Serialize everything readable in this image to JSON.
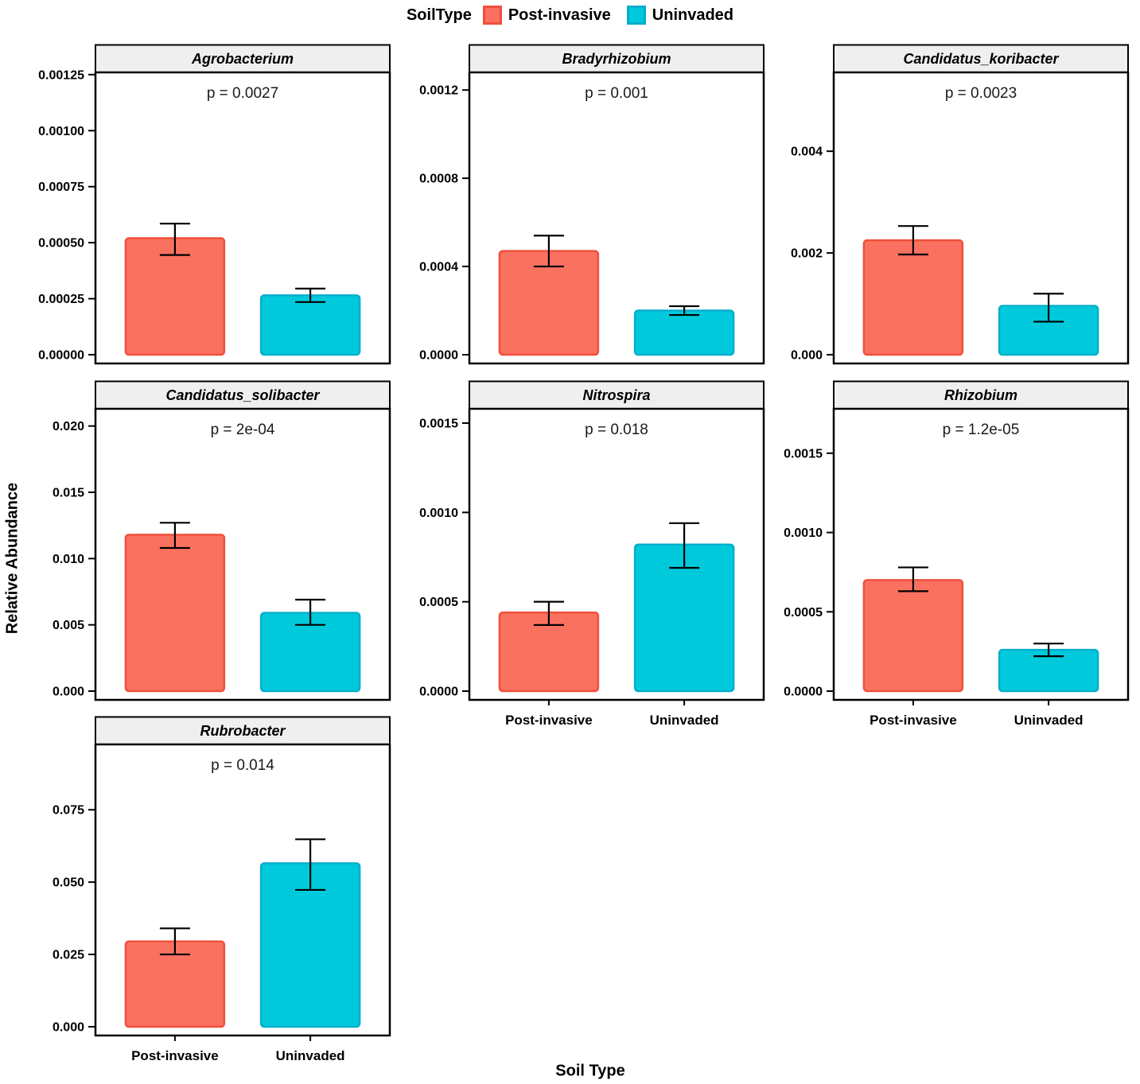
{
  "chart_data": {
    "type": "bar",
    "title": "",
    "xlabel": "Soil Type",
    "ylabel": "Relative Abundance",
    "categories": [
      "Post-invasive",
      "Uninvaded"
    ],
    "legend": {
      "title": "SoilType",
      "position": "top",
      "items": [
        {
          "label": "Post-invasive",
          "fill": "#FA7160",
          "stroke": "#F0503C"
        },
        {
          "label": "Uninvaded",
          "fill": "#00C9DC",
          "stroke": "#00AECC"
        }
      ]
    },
    "colors": {
      "post_invasive_fill": "#FA7160",
      "post_invasive_stroke": "#F0503C",
      "uninvaded_fill": "#00C9DC",
      "uninvaded_stroke": "#00AECC",
      "strip_bg": "#EFEFEF",
      "panel_border": "#000000",
      "p_text": "#1a1a1a"
    },
    "grid": "off",
    "facets": [
      {
        "name": "Agrobacterium",
        "p_label": "p = 0.0027",
        "ymax": 0.00126,
        "col": 0,
        "row": 0,
        "show_x_labels": false,
        "ticks": [
          {
            "v": 0.0,
            "label": "0.00000"
          },
          {
            "v": 0.00025,
            "label": "0.00025"
          },
          {
            "v": 0.0005,
            "label": "0.00050"
          },
          {
            "v": 0.00075,
            "label": "0.00075"
          },
          {
            "v": 0.001,
            "label": "0.00100"
          },
          {
            "v": 0.00125,
            "label": "0.00125"
          }
        ],
        "bars": [
          {
            "category": "Post-invasive",
            "value": 0.00052,
            "err_lo": 0.000445,
            "err_hi": 0.000585
          },
          {
            "category": "Uninvaded",
            "value": 0.000265,
            "err_lo": 0.000235,
            "err_hi": 0.000295
          }
        ]
      },
      {
        "name": "Bradyrhizobium",
        "p_label": "p = 0.001",
        "ymax": 0.00128,
        "col": 1,
        "row": 0,
        "show_x_labels": false,
        "ticks": [
          {
            "v": 0.0,
            "label": "0.0000"
          },
          {
            "v": 0.0004,
            "label": "0.0004"
          },
          {
            "v": 0.0008,
            "label": "0.0008"
          },
          {
            "v": 0.0012,
            "label": "0.0012"
          }
        ],
        "bars": [
          {
            "category": "Post-invasive",
            "value": 0.00047,
            "err_lo": 0.0004,
            "err_hi": 0.00054
          },
          {
            "category": "Uninvaded",
            "value": 0.0002,
            "err_lo": 0.00018,
            "err_hi": 0.00022
          }
        ]
      },
      {
        "name": "Candidatus_koribacter",
        "p_label": "p = 0.0023",
        "ymax": 0.00555,
        "col": 2,
        "row": 0,
        "show_x_labels": false,
        "ticks": [
          {
            "v": 0.0,
            "label": "0.000"
          },
          {
            "v": 0.002,
            "label": "0.002"
          },
          {
            "v": 0.004,
            "label": "0.004"
          }
        ],
        "bars": [
          {
            "category": "Post-invasive",
            "value": 0.00225,
            "err_lo": 0.00197,
            "err_hi": 0.00253
          },
          {
            "category": "Uninvaded",
            "value": 0.00096,
            "err_lo": 0.00065,
            "err_hi": 0.0012
          }
        ]
      },
      {
        "name": "Candidatus_solibacter",
        "p_label": "p = 2e-04",
        "ymax": 0.0213,
        "col": 0,
        "row": 1,
        "show_x_labels": false,
        "ticks": [
          {
            "v": 0.0,
            "label": "0.000"
          },
          {
            "v": 0.005,
            "label": "0.005"
          },
          {
            "v": 0.01,
            "label": "0.010"
          },
          {
            "v": 0.015,
            "label": "0.015"
          },
          {
            "v": 0.02,
            "label": "0.020"
          }
        ],
        "bars": [
          {
            "category": "Post-invasive",
            "value": 0.0118,
            "err_lo": 0.0108,
            "err_hi": 0.0127
          },
          {
            "category": "Uninvaded",
            "value": 0.0059,
            "err_lo": 0.005,
            "err_hi": 0.0069
          }
        ]
      },
      {
        "name": "Nitrospira",
        "p_label": "p = 0.018",
        "ymax": 0.00158,
        "col": 1,
        "row": 1,
        "show_x_labels": true,
        "ticks": [
          {
            "v": 0.0,
            "label": "0.0000"
          },
          {
            "v": 0.0005,
            "label": "0.0005"
          },
          {
            "v": 0.001,
            "label": "0.0010"
          },
          {
            "v": 0.0015,
            "label": "0.0015"
          }
        ],
        "bars": [
          {
            "category": "Post-invasive",
            "value": 0.00044,
            "err_lo": 0.00037,
            "err_hi": 0.0005
          },
          {
            "category": "Uninvaded",
            "value": 0.00082,
            "err_lo": 0.00069,
            "err_hi": 0.00094
          }
        ]
      },
      {
        "name": "Rhizobium",
        "p_label": "p = 1.2e-05",
        "ymax": 0.00178,
        "col": 2,
        "row": 1,
        "show_x_labels": true,
        "ticks": [
          {
            "v": 0.0,
            "label": "0.0000"
          },
          {
            "v": 0.0005,
            "label": "0.0005"
          },
          {
            "v": 0.001,
            "label": "0.0010"
          },
          {
            "v": 0.0015,
            "label": "0.0015"
          }
        ],
        "bars": [
          {
            "category": "Post-invasive",
            "value": 0.0007,
            "err_lo": 0.00063,
            "err_hi": 0.00078
          },
          {
            "category": "Uninvaded",
            "value": 0.00026,
            "err_lo": 0.00022,
            "err_hi": 0.0003
          }
        ]
      },
      {
        "name": "Rubrobacter",
        "p_label": "p = 0.014",
        "ymax": 0.0976,
        "col": 0,
        "row": 2,
        "show_x_labels": true,
        "ticks": [
          {
            "v": 0.0,
            "label": "0.000"
          },
          {
            "v": 0.025,
            "label": "0.025"
          },
          {
            "v": 0.05,
            "label": "0.050"
          },
          {
            "v": 0.075,
            "label": "0.075"
          }
        ],
        "bars": [
          {
            "category": "Post-invasive",
            "value": 0.0295,
            "err_lo": 0.025,
            "err_hi": 0.034
          },
          {
            "category": "Uninvaded",
            "value": 0.0565,
            "err_lo": 0.0473,
            "err_hi": 0.0648
          }
        ]
      }
    ]
  }
}
